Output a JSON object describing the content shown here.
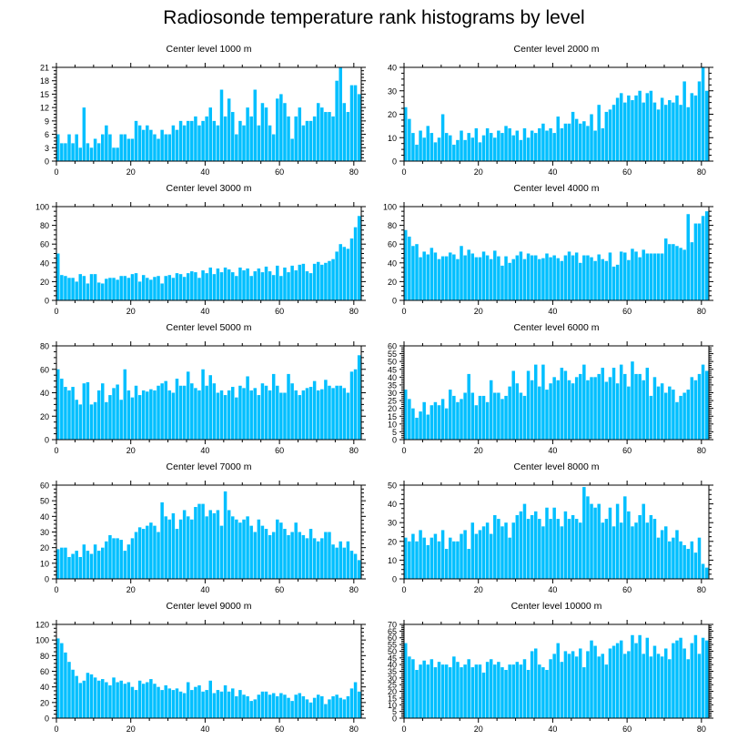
{
  "title": "Radiosonde temperature rank histograms by level",
  "bar_color": "#00bfff",
  "chart_data": [
    {
      "type": "bar",
      "title": "Center level 1000 m",
      "xlim": [
        0,
        82
      ],
      "ylim": [
        0,
        21
      ],
      "xticks": [
        0,
        20,
        40,
        60,
        80
      ],
      "yticks": [
        0,
        3,
        6,
        9,
        12,
        15,
        18,
        21
      ],
      "values": [
        6,
        4,
        4,
        6,
        4,
        6,
        3,
        12,
        4,
        3,
        5,
        4,
        6,
        8,
        6,
        3,
        3,
        6,
        6,
        5,
        5,
        9,
        8,
        7,
        8,
        7,
        6,
        5,
        7,
        6,
        6,
        8,
        7,
        9,
        8,
        9,
        9,
        10,
        8,
        9,
        10,
        12,
        9,
        8,
        16,
        10,
        14,
        11,
        6,
        9,
        8,
        12,
        10,
        16,
        8,
        13,
        12,
        8,
        6,
        14,
        15,
        13,
        10,
        5,
        10,
        12,
        8,
        9,
        9,
        10,
        13,
        12,
        11,
        11,
        10,
        18,
        21,
        13,
        11,
        17,
        17,
        15
      ]
    },
    {
      "type": "bar",
      "title": "Center level 2000 m",
      "xlim": [
        0,
        82
      ],
      "ylim": [
        0,
        40
      ],
      "xticks": [
        0,
        20,
        40,
        60,
        80
      ],
      "yticks": [
        0,
        10,
        20,
        30,
        40
      ],
      "values": [
        23,
        18,
        12,
        7,
        13,
        10,
        15,
        12,
        8,
        10,
        20,
        12,
        11,
        7,
        9,
        13,
        9,
        12,
        10,
        14,
        8,
        11,
        14,
        12,
        10,
        13,
        12,
        15,
        14,
        11,
        13,
        9,
        14,
        10,
        13,
        12,
        14,
        16,
        13,
        14,
        12,
        19,
        14,
        16,
        16,
        21,
        18,
        16,
        17,
        15,
        20,
        13,
        24,
        14,
        21,
        22,
        24,
        27,
        29,
        25,
        28,
        26,
        28,
        30,
        25,
        29,
        30,
        25,
        22,
        27,
        24,
        26,
        25,
        28,
        24,
        34,
        23,
        29,
        28,
        34,
        40,
        30
      ]
    },
    {
      "type": "bar",
      "title": "Center level 3000 m",
      "xlim": [
        0,
        82
      ],
      "ylim": [
        0,
        100
      ],
      "xticks": [
        0,
        20,
        40,
        60,
        80
      ],
      "yticks": [
        0,
        20,
        40,
        60,
        80,
        100
      ],
      "values": [
        50,
        27,
        26,
        24,
        24,
        20,
        28,
        26,
        18,
        28,
        28,
        19,
        18,
        23,
        24,
        24,
        22,
        26,
        26,
        24,
        28,
        29,
        20,
        27,
        24,
        22,
        25,
        26,
        18,
        26,
        27,
        24,
        29,
        28,
        25,
        29,
        31,
        30,
        24,
        32,
        29,
        35,
        28,
        34,
        30,
        35,
        33,
        30,
        26,
        35,
        32,
        34,
        26,
        31,
        34,
        30,
        36,
        31,
        27,
        37,
        26,
        35,
        30,
        37,
        32,
        38,
        39,
        31,
        29,
        39,
        41,
        38,
        40,
        42,
        44,
        52,
        60,
        57,
        55,
        66,
        78,
        90
      ]
    },
    {
      "type": "bar",
      "title": "Center level 4000 m",
      "xlim": [
        0,
        82
      ],
      "ylim": [
        0,
        100
      ],
      "xticks": [
        0,
        20,
        40,
        60,
        80
      ],
      "yticks": [
        0,
        20,
        40,
        60,
        80,
        100
      ],
      "values": [
        75,
        68,
        58,
        60,
        46,
        52,
        49,
        56,
        51,
        44,
        47,
        47,
        51,
        49,
        44,
        58,
        48,
        54,
        50,
        46,
        46,
        52,
        48,
        44,
        53,
        47,
        37,
        47,
        40,
        44,
        48,
        52,
        44,
        50,
        48,
        48,
        44,
        45,
        50,
        46,
        48,
        45,
        42,
        48,
        52,
        48,
        51,
        40,
        48,
        48,
        46,
        42,
        49,
        44,
        42,
        51,
        36,
        38,
        52,
        51,
        43,
        55,
        52,
        46,
        54,
        50,
        50,
        50,
        50,
        50,
        66,
        60,
        60,
        58,
        56,
        54,
        92,
        62,
        82,
        82,
        90,
        95
      ]
    },
    {
      "type": "bar",
      "title": "Center level 5000 m",
      "xlim": [
        0,
        82
      ],
      "ylim": [
        0,
        80
      ],
      "xticks": [
        0,
        20,
        40,
        60,
        80
      ],
      "yticks": [
        0,
        20,
        40,
        60,
        80
      ],
      "values": [
        60,
        52,
        45,
        42,
        45,
        34,
        30,
        48,
        49,
        30,
        32,
        42,
        48,
        32,
        38,
        44,
        47,
        34,
        60,
        42,
        36,
        46,
        38,
        42,
        41,
        43,
        42,
        46,
        48,
        50,
        42,
        40,
        52,
        46,
        46,
        58,
        48,
        44,
        42,
        60,
        46,
        55,
        48,
        40,
        42,
        38,
        42,
        45,
        36,
        46,
        44,
        54,
        42,
        44,
        38,
        48,
        46,
        42,
        56,
        46,
        40,
        40,
        56,
        48,
        42,
        38,
        42,
        44,
        45,
        50,
        42,
        43,
        51,
        46,
        44,
        46,
        46,
        44,
        40,
        58,
        60,
        72
      ]
    },
    {
      "type": "bar",
      "title": "Center level 6000 m",
      "xlim": [
        0,
        82
      ],
      "ylim": [
        0,
        60
      ],
      "xticks": [
        0,
        20,
        40,
        60,
        80
      ],
      "yticks": [
        0,
        5,
        10,
        15,
        20,
        25,
        30,
        35,
        40,
        45,
        50,
        55,
        60
      ],
      "values": [
        32,
        26,
        20,
        14,
        18,
        24,
        16,
        22,
        24,
        22,
        26,
        20,
        32,
        28,
        24,
        26,
        30,
        42,
        30,
        22,
        28,
        28,
        24,
        38,
        30,
        30,
        26,
        28,
        34,
        44,
        36,
        30,
        28,
        44,
        38,
        48,
        34,
        48,
        32,
        36,
        40,
        38,
        46,
        44,
        38,
        36,
        40,
        42,
        48,
        38,
        40,
        40,
        42,
        46,
        37,
        40,
        46,
        36,
        48,
        42,
        34,
        50,
        42,
        42,
        38,
        46,
        28,
        40,
        34,
        36,
        30,
        34,
        32,
        24,
        28,
        30,
        32,
        40,
        38,
        42,
        48,
        44
      ]
    },
    {
      "type": "bar",
      "title": "Center level 7000 m",
      "xlim": [
        0,
        82
      ],
      "ylim": [
        0,
        60
      ],
      "xticks": [
        0,
        20,
        40,
        60,
        80
      ],
      "yticks": [
        0,
        10,
        20,
        30,
        40,
        50,
        60
      ],
      "values": [
        19,
        20,
        20,
        14,
        16,
        18,
        14,
        22,
        18,
        16,
        22,
        18,
        20,
        24,
        28,
        26,
        26,
        25,
        18,
        22,
        26,
        30,
        33,
        32,
        34,
        36,
        34,
        30,
        49,
        40,
        38,
        42,
        32,
        38,
        44,
        40,
        38,
        46,
        48,
        48,
        40,
        44,
        42,
        44,
        34,
        56,
        44,
        40,
        38,
        36,
        38,
        40,
        34,
        30,
        38,
        34,
        32,
        28,
        30,
        38,
        36,
        32,
        28,
        30,
        36,
        30,
        28,
        26,
        32,
        26,
        24,
        26,
        30,
        30,
        22,
        20,
        24,
        20,
        24,
        18,
        16,
        12
      ]
    },
    {
      "type": "bar",
      "title": "Center level 8000 m",
      "xlim": [
        0,
        82
      ],
      "ylim": [
        0,
        50
      ],
      "xticks": [
        0,
        20,
        40,
        60,
        80
      ],
      "yticks": [
        0,
        10,
        20,
        30,
        40,
        50
      ],
      "values": [
        22,
        20,
        24,
        20,
        26,
        22,
        18,
        22,
        24,
        20,
        26,
        16,
        22,
        20,
        20,
        24,
        26,
        16,
        30,
        24,
        26,
        28,
        30,
        24,
        34,
        32,
        28,
        30,
        22,
        30,
        34,
        36,
        40,
        32,
        34,
        36,
        32,
        28,
        38,
        32,
        38,
        32,
        28,
        36,
        32,
        34,
        32,
        30,
        49,
        44,
        40,
        38,
        40,
        30,
        32,
        38,
        28,
        40,
        30,
        44,
        36,
        28,
        30,
        34,
        40,
        30,
        34,
        32,
        22,
        26,
        28,
        20,
        22,
        26,
        20,
        18,
        16,
        20,
        14,
        22,
        8,
        6
      ]
    },
    {
      "type": "bar",
      "title": "Center level 9000 m",
      "xlim": [
        0,
        82
      ],
      "ylim": [
        0,
        120
      ],
      "xticks": [
        0,
        20,
        40,
        60,
        80
      ],
      "yticks": [
        0,
        20,
        40,
        60,
        80,
        100,
        120
      ],
      "values": [
        102,
        96,
        84,
        72,
        62,
        54,
        45,
        48,
        58,
        56,
        52,
        48,
        50,
        46,
        42,
        52,
        46,
        48,
        44,
        46,
        40,
        36,
        48,
        44,
        46,
        50,
        44,
        40,
        36,
        42,
        38,
        36,
        38,
        34,
        32,
        46,
        36,
        40,
        42,
        34,
        36,
        48,
        32,
        36,
        34,
        42,
        34,
        38,
        28,
        36,
        30,
        28,
        22,
        24,
        30,
        34,
        34,
        30,
        32,
        28,
        32,
        30,
        26,
        22,
        30,
        32,
        28,
        24,
        20,
        26,
        30,
        28,
        18,
        24,
        28,
        30,
        26,
        24,
        28,
        38,
        46,
        34
      ]
    },
    {
      "type": "bar",
      "title": "Center level 10000 m",
      "xlim": [
        0,
        82
      ],
      "ylim": [
        0,
        70
      ],
      "xticks": [
        0,
        20,
        40,
        60,
        80
      ],
      "yticks": [
        0,
        5,
        10,
        15,
        20,
        25,
        30,
        35,
        40,
        45,
        50,
        55,
        60,
        65,
        70
      ],
      "values": [
        56,
        46,
        44,
        36,
        40,
        43,
        40,
        44,
        38,
        42,
        40,
        40,
        38,
        46,
        42,
        38,
        40,
        44,
        38,
        40,
        40,
        34,
        42,
        44,
        40,
        42,
        38,
        36,
        40,
        40,
        42,
        40,
        44,
        36,
        50,
        52,
        40,
        38,
        36,
        44,
        48,
        56,
        42,
        50,
        48,
        50,
        46,
        52,
        38,
        50,
        58,
        54,
        46,
        48,
        40,
        52,
        54,
        56,
        58,
        48,
        50,
        62,
        56,
        62,
        48,
        60,
        46,
        54,
        48,
        46,
        52,
        44,
        56,
        58,
        60,
        52,
        44,
        56,
        62,
        48,
        60,
        58
      ]
    }
  ]
}
